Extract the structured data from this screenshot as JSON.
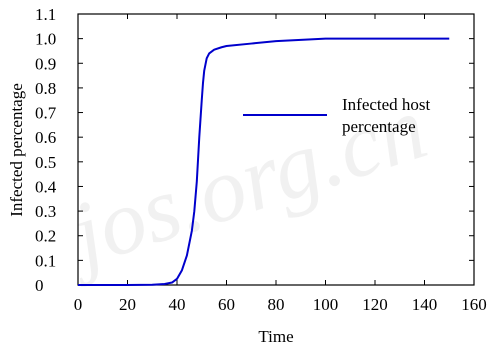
{
  "chart_data": {
    "type": "line",
    "title": "",
    "xlabel": "Time",
    "ylabel": "Infected percentage",
    "xlim": [
      0,
      160
    ],
    "ylim": [
      0,
      1.1
    ],
    "xticks": [
      "0",
      "20",
      "40",
      "60",
      "80",
      "100",
      "120",
      "140",
      "160"
    ],
    "yticks": [
      "0",
      "0.1",
      "0.2",
      "0.3",
      "0.4",
      "0.5",
      "0.6",
      "0.7",
      "0.8",
      "0.9",
      "1.0",
      "1.1"
    ],
    "grid": false,
    "legend_position": "center-right",
    "series": [
      {
        "name": "Infected host percentage",
        "color": "#0000cc",
        "x": [
          0,
          20,
          30,
          35,
          38,
          40,
          42,
          44,
          46,
          47,
          48,
          49,
          50,
          50.5,
          51,
          52,
          53,
          55,
          58,
          60,
          70,
          80,
          90,
          100,
          110,
          120,
          130,
          140,
          150
        ],
        "y": [
          0,
          0,
          0.001,
          0.004,
          0.01,
          0.025,
          0.06,
          0.12,
          0.22,
          0.3,
          0.42,
          0.6,
          0.75,
          0.82,
          0.87,
          0.92,
          0.94,
          0.955,
          0.965,
          0.97,
          0.98,
          0.99,
          0.995,
          1.0,
          1.0,
          1.0,
          1.0,
          1.0,
          1.0
        ]
      }
    ]
  },
  "watermark": "jos.org.cn"
}
